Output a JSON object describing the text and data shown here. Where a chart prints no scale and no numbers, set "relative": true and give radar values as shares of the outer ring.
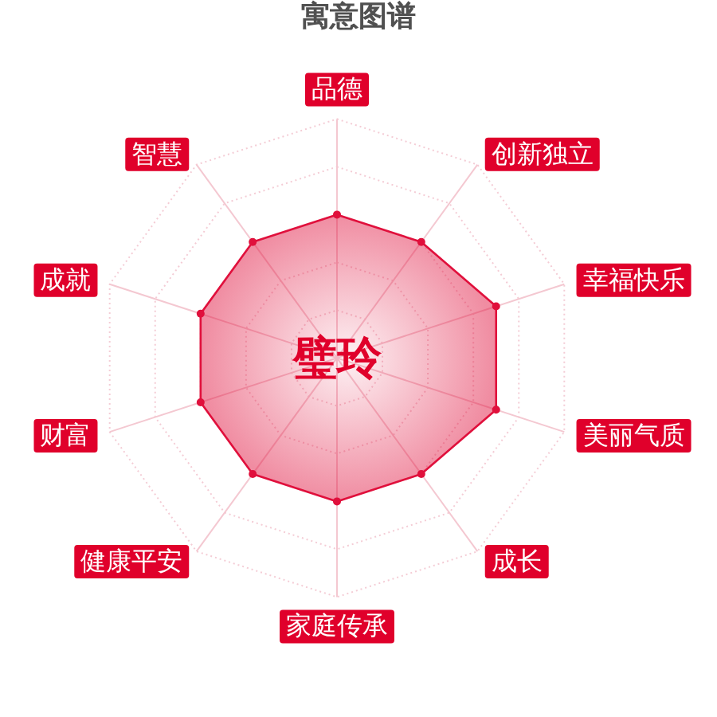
{
  "chart_data": {
    "type": "radar",
    "title": "寓意图谱",
    "categories": [
      "品德",
      "创新独立",
      "幸福快乐",
      "美丽气质",
      "成长",
      "家庭传承",
      "健康平安",
      "财富",
      "成就",
      "智慧"
    ],
    "relative": true,
    "grid": true,
    "marker": "circle",
    "series": [
      {
        "color": "#e0103c",
        "values": [
          0.6,
          0.6,
          0.7,
          0.7,
          0.6,
          0.6,
          0.6,
          0.6,
          0.6,
          0.6
        ]
      }
    ],
    "annotations": [
      "璧玲"
    ]
  }
}
